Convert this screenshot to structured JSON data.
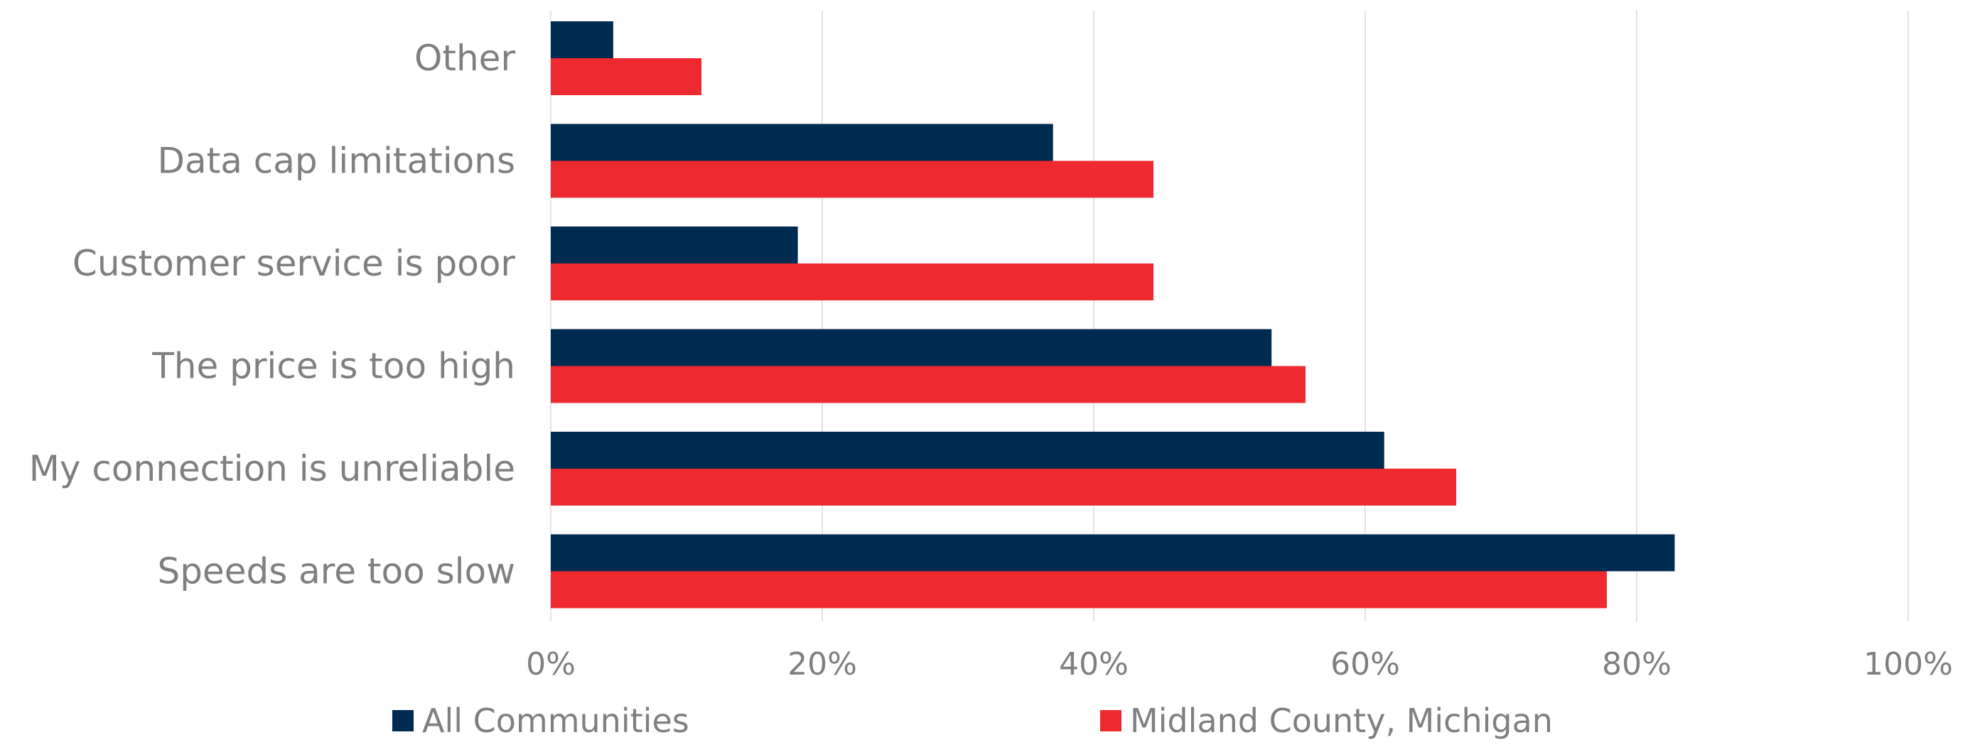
{
  "chart_data": {
    "type": "bar",
    "orientation": "horizontal",
    "categories": [
      "Other",
      "Data cap limitations",
      "Customer service is poor",
      "The price is too high",
      "My connection is unreliable",
      "Speeds are too slow"
    ],
    "series": [
      {
        "name": "All Communities",
        "color": "#002b50",
        "values": [
          4.6,
          37,
          18.2,
          53.1,
          61.4,
          82.8
        ]
      },
      {
        "name": "Midland County, Michigan",
        "color": "#ee2930",
        "values": [
          11.1,
          44.4,
          44.4,
          55.6,
          66.7,
          77.8
        ]
      }
    ],
    "xlim": [
      0,
      100
    ],
    "xticks": [
      "0%",
      "20%",
      "40%",
      "60%",
      "80%",
      "100%"
    ],
    "grid": true,
    "legend_position": "bottom",
    "colors": {
      "label_text": "#7f7f7f",
      "gridline": "#e3e3e3"
    }
  }
}
